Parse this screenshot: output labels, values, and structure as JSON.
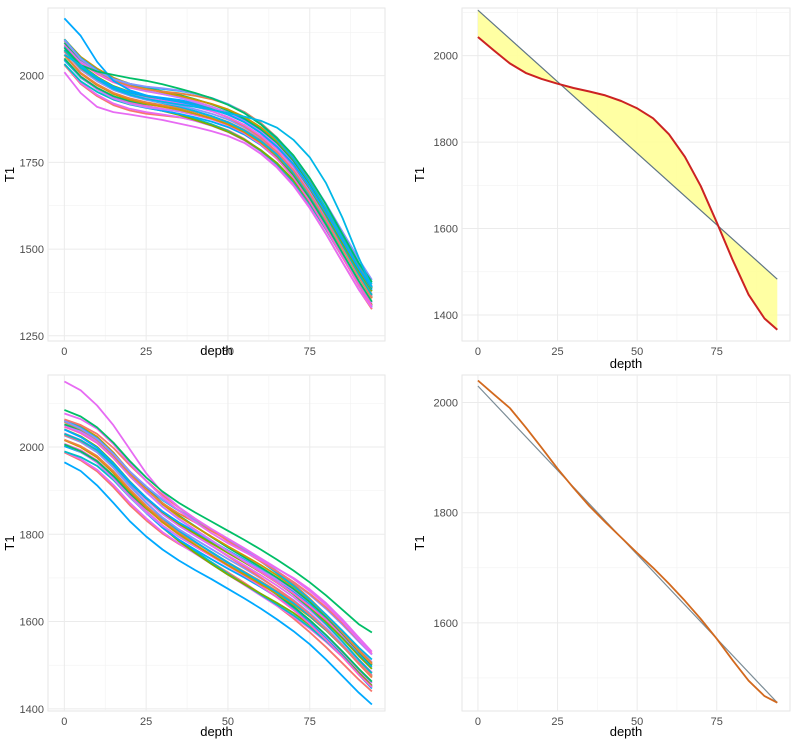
{
  "chart_data": [
    {
      "type": "line",
      "xlabel": "depth",
      "ylabel": "T1",
      "xlim": [
        -5,
        98
      ],
      "ylim": [
        1235,
        2195
      ],
      "xticks": [
        0,
        25,
        50,
        75
      ],
      "yticks": [
        1250,
        1500,
        1750,
        2000
      ],
      "grid": true,
      "legend": "none",
      "bundle": {
        "x": [
          0,
          5,
          10,
          15,
          20,
          25,
          30,
          35,
          40,
          45,
          50,
          55,
          60,
          65,
          70,
          75,
          80,
          85,
          90,
          94
        ],
        "base": [
          2070,
          2018,
          1985,
          1960,
          1944,
          1933,
          1925,
          1917,
          1906,
          1893,
          1876,
          1853,
          1822,
          1782,
          1730,
          1664,
          1588,
          1506,
          1425,
          1365
        ],
        "count": 24,
        "colors": [
          "#F8766D",
          "#E76BF3",
          "#00BFC4",
          "#7CAE00",
          "#00A9FF",
          "#FF61CC",
          "#C77CFF",
          "#00BE67",
          "#CD9600",
          "#ED813E",
          "#00B8E7",
          "#8494FF"
        ]
      },
      "series": [
        {
          "values": [
            2010,
            1950,
            1910,
            1895,
            1888,
            1880,
            1872,
            1862,
            1852,
            1840,
            1826,
            1806,
            1775,
            1735,
            1683,
            1618,
            1543,
            1462,
            1383,
            1330
          ]
        },
        {
          "values": [
            2165,
            2115,
            2040,
            1985,
            1958,
            1943,
            1933,
            1925,
            1915,
            1903,
            1888,
            1866,
            1835,
            1795,
            1745,
            1680,
            1605,
            1525,
            1445,
            1390
          ]
        },
        {
          "values": [
            2080,
            2030,
            2012,
            2002,
            1993,
            1985,
            1975,
            1963,
            1950,
            1935,
            1916,
            1892,
            1860,
            1820,
            1770,
            1705,
            1628,
            1543,
            1460,
            1405
          ]
        },
        {
          "values": [
            2060,
            2030,
            1990,
            1962,
            1945,
            1933,
            1925,
            1917,
            1910,
            1902,
            1892,
            1882,
            1870,
            1850,
            1815,
            1765,
            1690,
            1590,
            1475,
            1390
          ]
        }
      ]
    },
    {
      "type": "area",
      "xlabel": "depth",
      "ylabel": "T1",
      "xlim": [
        -5,
        98
      ],
      "ylim": [
        1340,
        2110
      ],
      "xticks": [
        0,
        25,
        50,
        75
      ],
      "yticks": [
        1400,
        1600,
        1800,
        2000
      ],
      "grid": true,
      "legend": "none",
      "x": [
        0,
        5,
        10,
        15,
        20,
        25,
        30,
        35,
        40,
        45,
        50,
        55,
        60,
        65,
        70,
        75,
        80,
        85,
        90,
        94
      ],
      "curve": [
        2043,
        2012,
        1982,
        1960,
        1946,
        1935,
        1925,
        1917,
        1908,
        1895,
        1878,
        1855,
        1818,
        1766,
        1698,
        1614,
        1527,
        1447,
        1392,
        1366
      ],
      "line": {
        "x": [
          0,
          94
        ],
        "y": [
          2105,
          1483
        ]
      },
      "curve_color": "#CC2222",
      "fill_color": "#FFFF99"
    },
    {
      "type": "line",
      "xlabel": "depth",
      "ylabel": "T1",
      "xlim": [
        -5,
        98
      ],
      "ylim": [
        1395,
        2165
      ],
      "xticks": [
        0,
        25,
        50,
        75
      ],
      "yticks": [
        1400,
        1600,
        1800,
        2000
      ],
      "grid": true,
      "legend": "none",
      "bundle": {
        "x": [
          0,
          5,
          10,
          15,
          20,
          25,
          30,
          35,
          40,
          45,
          50,
          55,
          60,
          65,
          70,
          75,
          80,
          85,
          90,
          94
        ],
        "base": [
          2030,
          2015,
          1992,
          1957,
          1915,
          1878,
          1845,
          1818,
          1795,
          1772,
          1749,
          1727,
          1704,
          1680,
          1654,
          1624,
          1590,
          1552,
          1512,
          1482
        ],
        "count": 26,
        "colors": [
          "#F8766D",
          "#E76BF3",
          "#00BFC4",
          "#7CAE00",
          "#00A9FF",
          "#FF61CC",
          "#C77CFF",
          "#00BE67",
          "#CD9600",
          "#ED813E",
          "#00B8E7",
          "#8494FF"
        ]
      },
      "series": [
        {
          "values": [
            2150,
            2130,
            2095,
            2050,
            1995,
            1940,
            1895,
            1862,
            1836,
            1812,
            1790,
            1768,
            1745,
            1722,
            1698,
            1670,
            1638,
            1600,
            1558,
            1525
          ]
        },
        {
          "values": [
            1965,
            1945,
            1912,
            1872,
            1830,
            1795,
            1765,
            1740,
            1718,
            1697,
            1675,
            1653,
            1630,
            1605,
            1578,
            1548,
            1513,
            1475,
            1437,
            1410
          ]
        },
        {
          "values": [
            2085,
            2070,
            2045,
            2010,
            1968,
            1930,
            1898,
            1872,
            1850,
            1829,
            1808,
            1787,
            1765,
            1742,
            1717,
            1690,
            1660,
            1627,
            1594,
            1575
          ]
        }
      ]
    },
    {
      "type": "line",
      "xlabel": "depth",
      "ylabel": "T1",
      "xlim": [
        -5,
        98
      ],
      "ylim": [
        1440,
        2050
      ],
      "xticks": [
        0,
        25,
        50,
        75
      ],
      "yticks": [
        1600,
        1800,
        2000
      ],
      "grid": true,
      "legend": "none",
      "series": [
        {
          "x": [
            0,
            94
          ],
          "values": [
            2030,
            1455
          ],
          "color": "#7B8C96"
        },
        {
          "x": [
            0,
            5,
            10,
            15,
            20,
            25,
            30,
            35,
            40,
            45,
            50,
            55,
            60,
            65,
            70,
            75,
            80,
            85,
            90,
            94
          ],
          "values": [
            2040,
            2015,
            1990,
            1955,
            1918,
            1880,
            1845,
            1812,
            1783,
            1755,
            1727,
            1700,
            1671,
            1640,
            1607,
            1571,
            1532,
            1495,
            1467,
            1455
          ],
          "color": "#D2691E"
        }
      ]
    }
  ]
}
